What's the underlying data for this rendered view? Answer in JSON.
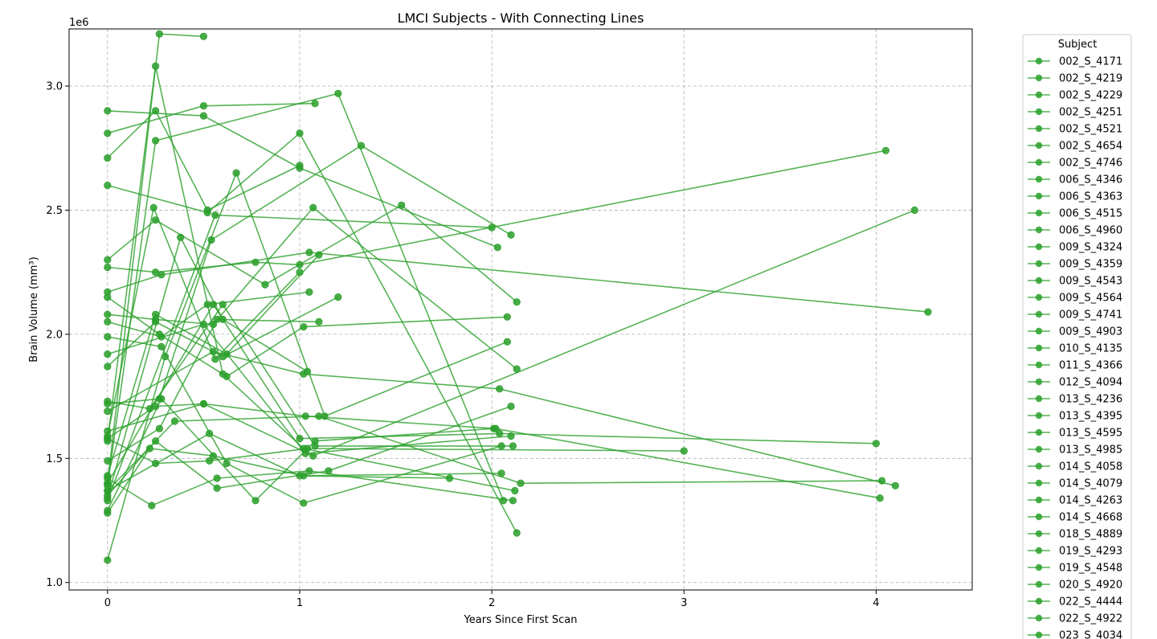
{
  "chart_data": {
    "type": "line",
    "title": "LMCI Subjects - With Connecting Lines",
    "xlabel": "Years Since First Scan",
    "ylabel": "Brain Volume (mm³)",
    "y_offset_label": "1e6",
    "xlim": [
      -0.2,
      4.5
    ],
    "ylim": [
      0.97,
      3.23
    ],
    "x_ticks": [
      0,
      1,
      2,
      3,
      4
    ],
    "x_tick_labels": [
      "0",
      "1",
      "2",
      "3",
      "4"
    ],
    "y_ticks": [
      1.0,
      1.5,
      2.0,
      2.5,
      3.0
    ],
    "y_tick_labels": [
      "1.0",
      "1.5",
      "2.0",
      "2.5",
      "3.0"
    ],
    "grid": true,
    "legend": {
      "title": "Subject",
      "placement": "outside-right"
    },
    "series_color": "#2ca02c",
    "series": [
      {
        "name": "002_S_4171",
        "x": [
          0,
          0.27,
          0.5
        ],
        "y": [
          1.4,
          3.21,
          3.2
        ]
      },
      {
        "name": "002_S_4219",
        "x": [
          0,
          0.25,
          0.52,
          1.0
        ],
        "y": [
          2.71,
          2.9,
          2.5,
          2.68
        ]
      },
      {
        "name": "002_S_4229",
        "x": [
          0,
          0.5,
          1.08
        ],
        "y": [
          2.81,
          2.92,
          2.93
        ]
      },
      {
        "name": "002_S_4251",
        "x": [
          0,
          0.25,
          0.6,
          1.02,
          2.12
        ],
        "y": [
          1.57,
          3.08,
          1.84,
          1.54,
          1.37
        ]
      },
      {
        "name": "002_S_4521",
        "x": [
          0,
          0.52,
          1.0,
          2.13
        ],
        "y": [
          2.6,
          2.49,
          2.81,
          1.2
        ]
      },
      {
        "name": "002_S_4654",
        "x": [
          0,
          0.5,
          1.0,
          2.03
        ],
        "y": [
          2.9,
          2.88,
          2.67,
          2.35
        ]
      },
      {
        "name": "002_S_4746",
        "x": [
          0,
          0.25,
          1.2,
          2.06
        ],
        "y": [
          1.39,
          2.78,
          2.97,
          1.33
        ]
      },
      {
        "name": "006_S_4346",
        "x": [
          0,
          0.56,
          2.0
        ],
        "y": [
          1.33,
          2.48,
          2.43
        ]
      },
      {
        "name": "006_S_4363",
        "x": [
          0,
          0.25,
          0.77,
          1.0,
          4.05
        ],
        "y": [
          2.27,
          2.25,
          2.29,
          2.28,
          2.74
        ]
      },
      {
        "name": "006_S_4515",
        "x": [
          0,
          0.27,
          0.54,
          1.32,
          2.1
        ],
        "y": [
          1.72,
          1.74,
          2.38,
          2.76,
          2.4
        ]
      },
      {
        "name": "006_S_4960",
        "x": [
          0,
          0.28,
          1.05,
          4.27
        ],
        "y": [
          2.17,
          2.24,
          2.33,
          2.09
        ]
      },
      {
        "name": "009_S_4324",
        "x": [
          0,
          0.25,
          0.82,
          1.53,
          2.13
        ],
        "y": [
          2.3,
          2.46,
          2.2,
          2.52,
          2.13
        ]
      },
      {
        "name": "009_S_4359",
        "x": [
          0,
          0.25,
          0.5,
          1.07,
          4.2
        ],
        "y": [
          1.58,
          1.71,
          1.72,
          1.51,
          2.5
        ]
      },
      {
        "name": "009_S_4543",
        "x": [
          0,
          0.38,
          0.6,
          1.04
        ],
        "y": [
          1.34,
          2.39,
          2.06,
          1.85
        ]
      },
      {
        "name": "009_S_4564",
        "x": [
          0,
          0.24,
          0.56,
          1.0
        ],
        "y": [
          1.59,
          2.51,
          1.9,
          2.25
        ]
      },
      {
        "name": "009_S_4741",
        "x": [
          0,
          0.25,
          0.62,
          1.1
        ],
        "y": [
          1.43,
          2.08,
          1.92,
          2.32
        ]
      },
      {
        "name": "009_S_4903",
        "x": [
          0,
          0.28,
          0.52,
          1.05
        ],
        "y": [
          2.05,
          1.99,
          2.12,
          2.17
        ]
      },
      {
        "name": "010_S_4135",
        "x": [
          0,
          0.5,
          1.03,
          2.02,
          4.02
        ],
        "y": [
          1.61,
          1.72,
          1.67,
          1.62,
          1.34
        ]
      },
      {
        "name": "011_S_4366",
        "x": [
          0,
          0.27,
          0.57,
          1.1
        ],
        "y": [
          1.49,
          1.62,
          2.06,
          2.05
        ]
      },
      {
        "name": "012_S_4094",
        "x": [
          0,
          0.25,
          0.6,
          1.2
        ],
        "y": [
          1.87,
          2.05,
          1.91,
          2.15
        ]
      },
      {
        "name": "013_S_4236",
        "x": [
          0,
          0.25,
          0.55,
          1.07,
          2.13
        ],
        "y": [
          2.08,
          2.06,
          2.04,
          2.51,
          1.86
        ]
      },
      {
        "name": "013_S_4395",
        "x": [
          0,
          0.22,
          0.6,
          1.08,
          2.11
        ],
        "y": [
          1.73,
          1.7,
          2.12,
          1.55,
          1.55
        ]
      },
      {
        "name": "013_S_4595",
        "x": [
          0,
          0.55,
          1.02,
          2.04,
          4.1
        ],
        "y": [
          1.69,
          1.93,
          1.84,
          1.78,
          1.39
        ]
      },
      {
        "name": "013_S_4985",
        "x": [
          0,
          0.27,
          0.62,
          1.02,
          2.08
        ],
        "y": [
          2.15,
          2.0,
          1.83,
          2.03,
          2.07
        ]
      },
      {
        "name": "014_S_4058",
        "x": [
          0,
          0.28,
          0.77,
          1.08,
          2.01
        ],
        "y": [
          1.29,
          1.74,
          1.33,
          1.57,
          1.62
        ]
      },
      {
        "name": "014_S_4079",
        "x": [
          0,
          0.53,
          1.0,
          1.78
        ],
        "y": [
          1.37,
          1.6,
          1.43,
          1.42
        ]
      },
      {
        "name": "014_S_4263",
        "x": [
          0,
          0.3,
          0.67,
          1.13,
          2.08
        ],
        "y": [
          1.09,
          1.91,
          2.65,
          1.67,
          1.97
        ]
      },
      {
        "name": "014_S_4668",
        "x": [
          0,
          0.35,
          1.1,
          2.15,
          4.03
        ],
        "y": [
          1.37,
          1.65,
          1.67,
          1.4,
          1.41
        ]
      },
      {
        "name": "018_S_4889",
        "x": [
          0,
          0.55,
          1.0,
          2.04,
          4.0
        ],
        "y": [
          1.4,
          2.12,
          1.58,
          1.6,
          1.56
        ]
      },
      {
        "name": "019_S_4293",
        "x": [
          0,
          0.25,
          0.57,
          1.15,
          2.1
        ],
        "y": [
          1.35,
          1.57,
          1.38,
          1.45,
          1.71
        ]
      },
      {
        "name": "019_S_4548",
        "x": [
          0,
          0.22,
          0.55,
          1.02,
          2.05
        ],
        "y": [
          1.28,
          1.54,
          1.51,
          1.43,
          1.44
        ]
      },
      {
        "name": "020_S_4920",
        "x": [
          0,
          0.25,
          0.53,
          1.04,
          3.0
        ],
        "y": [
          1.58,
          1.48,
          1.49,
          1.54,
          1.53
        ]
      },
      {
        "name": "022_S_4444",
        "x": [
          0,
          0.23,
          0.57,
          1.05,
          2.11
        ],
        "y": [
          1.42,
          1.31,
          1.42,
          1.45,
          1.33
        ]
      },
      {
        "name": "022_S_4922",
        "x": [
          0,
          0.28,
          0.62,
          1.02,
          2.05
        ],
        "y": [
          1.99,
          1.95,
          1.48,
          1.32,
          1.55
        ]
      },
      {
        "name": "023_S_4034",
        "x": [
          0,
          0.5,
          1.03,
          2.1
        ],
        "y": [
          1.92,
          2.04,
          1.52,
          1.59
        ]
      }
    ]
  }
}
